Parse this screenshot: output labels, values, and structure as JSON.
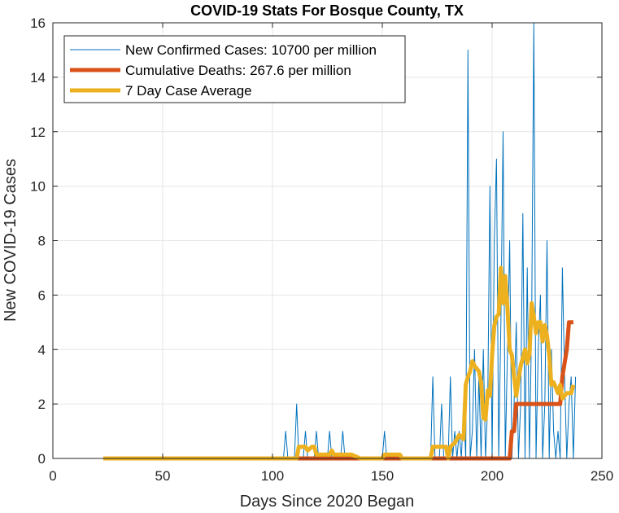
{
  "chart_data": {
    "type": "line",
    "title": "COVID-19 Stats For Bosque County, TX",
    "xlabel": "Days Since 2020 Began",
    "ylabel": "New COVID-19 Cases",
    "xlim": [
      0,
      250
    ],
    "ylim": [
      0,
      16
    ],
    "xticks": [
      0,
      50,
      100,
      150,
      200,
      250
    ],
    "yticks": [
      0,
      2,
      4,
      6,
      8,
      10,
      12,
      14,
      16
    ],
    "grid": true,
    "legend_position": "top-left",
    "series": [
      {
        "name": "New Confirmed Cases: 10700 per million",
        "color": "#0072BD",
        "line_width": "thin",
        "points": [
          [
            23,
            0
          ],
          [
            105,
            0
          ],
          [
            106,
            1
          ],
          [
            107,
            0
          ],
          [
            110,
            0
          ],
          [
            111,
            2
          ],
          [
            112,
            0
          ],
          [
            114,
            0
          ],
          [
            115,
            1
          ],
          [
            116,
            0
          ],
          [
            119,
            0
          ],
          [
            120,
            1
          ],
          [
            121,
            0
          ],
          [
            125,
            0
          ],
          [
            126,
            1
          ],
          [
            127,
            0
          ],
          [
            131,
            0
          ],
          [
            132,
            1
          ],
          [
            133,
            0
          ],
          [
            150,
            0
          ],
          [
            151,
            1
          ],
          [
            152,
            0
          ],
          [
            172,
            0
          ],
          [
            173,
            3
          ],
          [
            174,
            0
          ],
          [
            176,
            0
          ],
          [
            177,
            2
          ],
          [
            178,
            0
          ],
          [
            180,
            0
          ],
          [
            181,
            3
          ],
          [
            182,
            0
          ],
          [
            183,
            1
          ],
          [
            184,
            0
          ],
          [
            185,
            1
          ],
          [
            186,
            0
          ],
          [
            187,
            2
          ],
          [
            188,
            0
          ],
          [
            189,
            15
          ],
          [
            190,
            0
          ],
          [
            191,
            1
          ],
          [
            192,
            4
          ],
          [
            193,
            0
          ],
          [
            194,
            3
          ],
          [
            195,
            0
          ],
          [
            196,
            4
          ],
          [
            197,
            0
          ],
          [
            198,
            2
          ],
          [
            199,
            10
          ],
          [
            200,
            0
          ],
          [
            201,
            8
          ],
          [
            202,
            11
          ],
          [
            203,
            0
          ],
          [
            204,
            5
          ],
          [
            205,
            12
          ],
          [
            206,
            0
          ],
          [
            207,
            4
          ],
          [
            208,
            8
          ],
          [
            209,
            0
          ],
          [
            210,
            2
          ],
          [
            211,
            5
          ],
          [
            212,
            0
          ],
          [
            213,
            2
          ],
          [
            214,
            9
          ],
          [
            215,
            0
          ],
          [
            216,
            7
          ],
          [
            217,
            0
          ],
          [
            218,
            5
          ],
          [
            219,
            16
          ],
          [
            220,
            0
          ],
          [
            221,
            4
          ],
          [
            222,
            6
          ],
          [
            223,
            0
          ],
          [
            224,
            2
          ],
          [
            225,
            8
          ],
          [
            226,
            0
          ],
          [
            227,
            4
          ],
          [
            228,
            1
          ],
          [
            229,
            0
          ],
          [
            230,
            1
          ],
          [
            231,
            0
          ],
          [
            232,
            7
          ],
          [
            233,
            3
          ],
          [
            234,
            0
          ],
          [
            235,
            2
          ],
          [
            236,
            3
          ],
          [
            237,
            0
          ],
          [
            238,
            3
          ]
        ]
      },
      {
        "name": "Cumulative Deaths: 267.6 per million",
        "color": "#D95319",
        "line_width": "thick",
        "points": [
          [
            23,
            0
          ],
          [
            208,
            0
          ],
          [
            209,
            1
          ],
          [
            210,
            1
          ],
          [
            211,
            2
          ],
          [
            230,
            2
          ],
          [
            231,
            2
          ],
          [
            232,
            3
          ],
          [
            234,
            4
          ],
          [
            235,
            5
          ],
          [
            237,
            5
          ]
        ]
      },
      {
        "name": "7 Day Case Average",
        "color": "#EDB120",
        "line_width": "thick",
        "points": [
          [
            23,
            0
          ],
          [
            111,
            0
          ],
          [
            112,
            0.43
          ],
          [
            115,
            0.43
          ],
          [
            116,
            0.29
          ],
          [
            118,
            0.43
          ],
          [
            119,
            0.43
          ],
          [
            120,
            0.14
          ],
          [
            126,
            0.14
          ],
          [
            127,
            0.29
          ],
          [
            128,
            0.14
          ],
          [
            136,
            0.14
          ],
          [
            140,
            0
          ],
          [
            150,
            0
          ],
          [
            151,
            0.14
          ],
          [
            158,
            0.14
          ],
          [
            159,
            0
          ],
          [
            172,
            0
          ],
          [
            173,
            0.43
          ],
          [
            179,
            0.43
          ],
          [
            180,
            0
          ],
          [
            181,
            0.43
          ],
          [
            183,
            0.57
          ],
          [
            185,
            0.86
          ],
          [
            187,
            0.71
          ],
          [
            188,
            2.71
          ],
          [
            189,
            3
          ],
          [
            190,
            3.2
          ],
          [
            191,
            3.57
          ],
          [
            192,
            3.4
          ],
          [
            194,
            3.2
          ],
          [
            195,
            2.8
          ],
          [
            196,
            1.5
          ],
          [
            197,
            1.43
          ],
          [
            198,
            2.5
          ],
          [
            199,
            2.3
          ],
          [
            200,
            3.8
          ],
          [
            201,
            4.86
          ],
          [
            202,
            5.2
          ],
          [
            203,
            5.3
          ],
          [
            204,
            7
          ],
          [
            205,
            5.7
          ],
          [
            206,
            6.7
          ],
          [
            207,
            5.5
          ],
          [
            208,
            4
          ],
          [
            209,
            3.8
          ],
          [
            210,
            3
          ],
          [
            211,
            2.3
          ],
          [
            212,
            2.9
          ],
          [
            213,
            3.4
          ],
          [
            214,
            3.7
          ],
          [
            215,
            4
          ],
          [
            216,
            3.5
          ],
          [
            217,
            3.8
          ],
          [
            218,
            5.7
          ],
          [
            219,
            5.2
          ],
          [
            220,
            4.6
          ],
          [
            221,
            5
          ],
          [
            222,
            5
          ],
          [
            223,
            4.3
          ],
          [
            224,
            4.9
          ],
          [
            225,
            4.5
          ],
          [
            226,
            3.8
          ],
          [
            227,
            2.7
          ],
          [
            228,
            2.8
          ],
          [
            229,
            2.6
          ],
          [
            230,
            2.4
          ],
          [
            231,
            2.7
          ],
          [
            232,
            2.2
          ],
          [
            234,
            2.4
          ],
          [
            236,
            2.4
          ],
          [
            237,
            2.7
          ]
        ]
      }
    ]
  }
}
